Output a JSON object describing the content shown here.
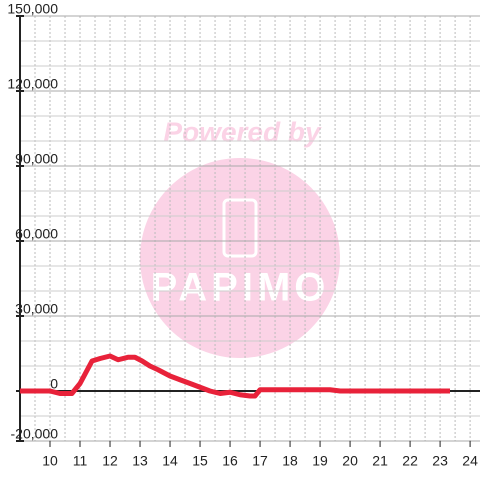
{
  "chart_data": {
    "type": "line",
    "x": [
      9,
      10,
      10.33,
      10.73,
      11,
      11.4,
      11.67,
      12,
      12.27,
      12.6,
      12.83,
      13.07,
      13.33,
      13.6,
      14,
      14.33,
      14.67,
      15,
      15.33,
      15.67,
      16,
      16.33,
      16.67,
      16.83,
      17,
      17.33,
      18,
      19,
      19.33,
      19.67,
      20,
      23.33
    ],
    "series": [
      {
        "color": "#e8223a",
        "values": [
          0,
          0,
          -1000,
          -1000,
          3000,
          12000,
          13000,
          14000,
          12500,
          13500,
          13500,
          12000,
          10000,
          8500,
          6000,
          4500,
          3000,
          1500,
          0,
          -1000,
          -500,
          -1500,
          -2000,
          -2000,
          500,
          500,
          500,
          500,
          500,
          0,
          0,
          0
        ]
      }
    ],
    "xlim": [
      9,
      24.33
    ],
    "xticks": [
      10,
      11,
      12,
      13,
      14,
      15,
      16,
      17,
      18,
      19,
      20,
      21,
      22,
      23,
      24
    ],
    "xgrid": [
      9.5,
      10,
      10.5,
      11,
      11.5,
      12,
      12.5,
      13,
      13.5,
      14,
      14.5,
      15,
      15.5,
      16,
      16.5,
      17,
      17.5,
      18,
      18.5,
      19,
      19.5,
      20,
      20.5,
      21,
      21.5,
      22,
      22.5,
      23,
      23.5,
      24
    ],
    "ylim": [
      -20000,
      150000
    ],
    "yticks": [
      {
        "value": -20000,
        "label": "-20,000"
      },
      0,
      {
        "value": 30000,
        "label": "30,000"
      },
      {
        "value": 60000,
        "label": "60,000"
      },
      {
        "value": 90000,
        "label": "90,000"
      },
      {
        "value": 120000,
        "label": "120,000"
      },
      {
        "value": 150000,
        "label": "150,000"
      }
    ],
    "ygrid": [
      -10000,
      10000,
      20000,
      40000,
      50000,
      70000,
      80000,
      100000,
      110000,
      130000,
      140000
    ],
    "grid": true,
    "watermark": {
      "line1": "Powered by",
      "line2": "PAPIMO"
    }
  }
}
